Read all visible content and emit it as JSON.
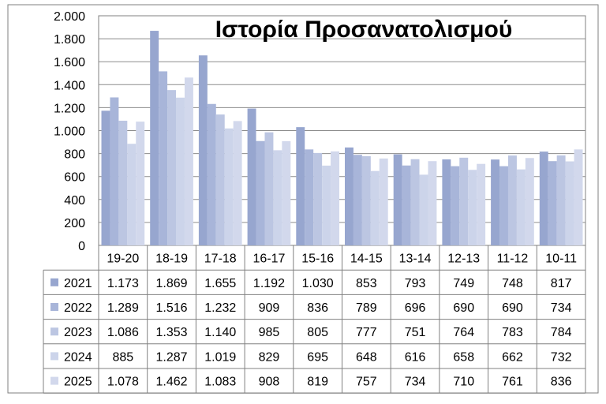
{
  "chart_data": {
    "type": "bar",
    "title": "Ιστορία Προσανατολισμού",
    "categories": [
      "19-20",
      "18-19",
      "17-18",
      "16-17",
      "15-16",
      "14-15",
      "13-14",
      "12-13",
      "11-12",
      "10-11"
    ],
    "series": [
      {
        "name": "2021",
        "color": "#97a6cf",
        "values": [
          1173,
          1869,
          1655,
          1192,
          1030,
          853,
          793,
          749,
          748,
          817
        ]
      },
      {
        "name": "2022",
        "color": "#a8b5d9",
        "values": [
          1289,
          1516,
          1232,
          909,
          836,
          789,
          696,
          690,
          690,
          734
        ]
      },
      {
        "name": "2023",
        "color": "#bcc6e2",
        "values": [
          1086,
          1353,
          1140,
          985,
          805,
          777,
          751,
          764,
          783,
          784
        ]
      },
      {
        "name": "2024",
        "color": "#ccd4ea",
        "values": [
          885,
          1287,
          1019,
          829,
          695,
          648,
          616,
          658,
          662,
          732
        ]
      },
      {
        "name": "2025",
        "color": "#d2d8ec",
        "values": [
          1078,
          1462,
          1083,
          908,
          819,
          757,
          734,
          710,
          761,
          836
        ]
      }
    ],
    "table_values": [
      [
        "1.173",
        "1.869",
        "1.655",
        "1.192",
        "1.030",
        "853",
        "793",
        "749",
        "748",
        "817"
      ],
      [
        "1.289",
        "1.516",
        "1.232",
        "909",
        "836",
        "789",
        "696",
        "690",
        "690",
        "734"
      ],
      [
        "1.086",
        "1.353",
        "1.140",
        "985",
        "805",
        "777",
        "751",
        "764",
        "783",
        "784"
      ],
      [
        "885",
        "1.287",
        "1.019",
        "829",
        "695",
        "648",
        "616",
        "658",
        "662",
        "732"
      ],
      [
        "1.078",
        "1.462",
        "1.083",
        "908",
        "819",
        "757",
        "734",
        "710",
        "761",
        "836"
      ]
    ],
    "yticks": [
      0,
      200,
      400,
      600,
      800,
      1000,
      1200,
      1400,
      1600,
      1800,
      2000
    ],
    "ytick_labels": [
      "0",
      "200",
      "400",
      "600",
      "800",
      "1.000",
      "1.200",
      "1.400",
      "1.600",
      "1.800",
      "2.000"
    ],
    "ylim": [
      0,
      2000
    ],
    "grid": true,
    "legend": "data table below chart"
  }
}
